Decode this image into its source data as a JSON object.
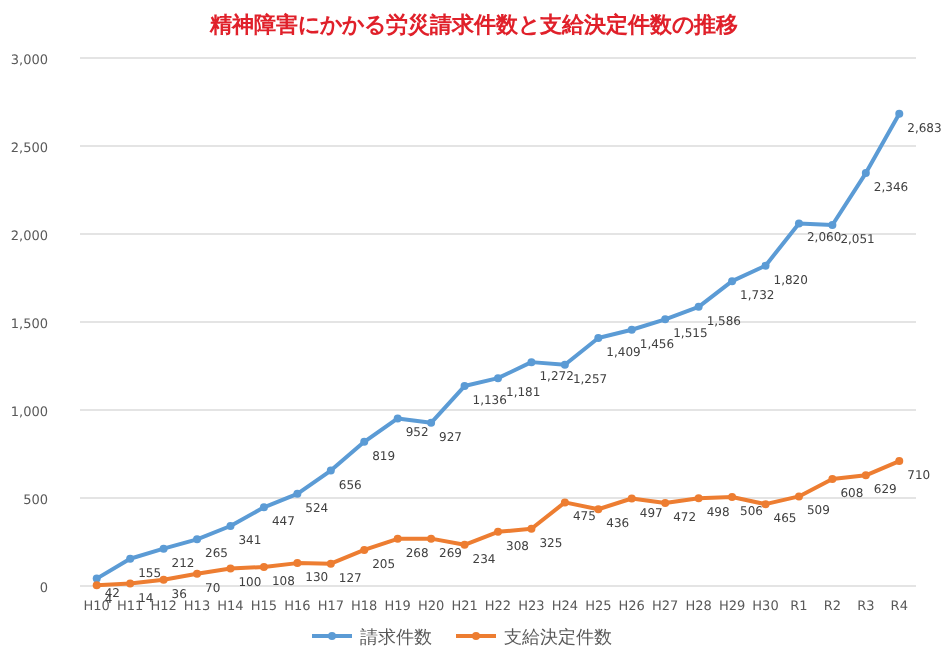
{
  "chart_data": {
    "type": "line",
    "title": "精神障害にかかる労災請求件数と支給決定件数の推移",
    "categories": [
      "H10",
      "H11",
      "H12",
      "H13",
      "H14",
      "H15",
      "H16",
      "H17",
      "H18",
      "H19",
      "H20",
      "H21",
      "H22",
      "H23",
      "H24",
      "H25",
      "H26",
      "H27",
      "H28",
      "H29",
      "H30",
      "R1",
      "R2",
      "R3",
      "R4"
    ],
    "series": [
      {
        "name": "請求件数",
        "color": "#5b9bd5",
        "values": [
          42,
          155,
          212,
          265,
          341,
          447,
          524,
          656,
          819,
          952,
          927,
          1136,
          1181,
          1272,
          1257,
          1409,
          1456,
          1515,
          1586,
          1732,
          1820,
          2060,
          2051,
          2346,
          2683
        ],
        "value_labels": [
          "42",
          "155",
          "212",
          "265",
          "341",
          "447",
          "524",
          "656",
          "819",
          "952",
          "927",
          "1,136",
          "1,181",
          "1,272",
          "1,257",
          "1,409",
          "1,456",
          "1,515",
          "1,586",
          "1,732",
          "1,820",
          "2,060",
          "2,051",
          "2,346",
          "2,683"
        ]
      },
      {
        "name": "支給決定件数",
        "color": "#ed7d31",
        "values": [
          4,
          14,
          36,
          70,
          100,
          108,
          130,
          127,
          205,
          268,
          269,
          234,
          308,
          325,
          475,
          436,
          497,
          472,
          498,
          506,
          465,
          509,
          608,
          629,
          710
        ],
        "value_labels": [
          "4",
          "14",
          "36",
          "70",
          "100",
          "108",
          "130",
          "127",
          "205",
          "268",
          "269",
          "234",
          "308",
          "325",
          "475",
          "436",
          "497",
          "472",
          "498",
          "506",
          "465",
          "509",
          "608",
          "629",
          "710"
        ]
      }
    ],
    "ylim": [
      0,
      3000
    ],
    "yticks": [
      0,
      {
        "value": 500,
        "label": "500"
      },
      {
        "value": 1000,
        "label": "1,000"
      },
      {
        "value": 1500,
        "label": "1,500"
      },
      {
        "value": 2000,
        "label": "2,000"
      },
      {
        "value": 2500,
        "label": "2,500"
      },
      {
        "value": 3000,
        "label": "3,000"
      }
    ],
    "grid": "y",
    "legend": "bottom",
    "marker": "circle",
    "line_style": "solid"
  }
}
